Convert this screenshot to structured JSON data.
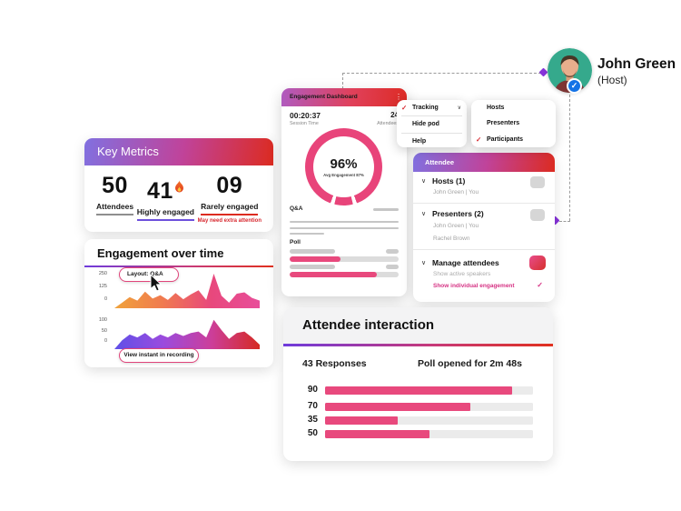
{
  "host_profile": {
    "name": "John Green",
    "role": "(Host)",
    "badge": "✓"
  },
  "pod_menu": {
    "items": [
      {
        "label": "Tracking",
        "checked": true,
        "check": "✓",
        "chevron": "∨"
      },
      {
        "label": "Hide pod",
        "checked": false
      },
      {
        "label": "Help",
        "checked": false
      }
    ]
  },
  "roles_menu": {
    "items": [
      {
        "label": "Hosts",
        "checked": false
      },
      {
        "label": "Presenters",
        "checked": false
      },
      {
        "label": "Participants",
        "checked": true,
        "check": "✓"
      }
    ]
  },
  "engagement_dashboard": {
    "title": "Engagement Dashboard",
    "kebab": "⋮",
    "session_time": "00:20:37",
    "session_time_label": "Session Time",
    "attendees_value": "24",
    "attendees_label": "Attendees",
    "donut": {
      "center_label": "96%",
      "sub_label": "Avg Engagement 87%",
      "percent": 96,
      "color": "#E8447A",
      "gap_degrees": [
        [
          160,
          166
        ],
        [
          194,
          200
        ]
      ]
    },
    "qa_label": "Q&A",
    "poll_label": "Poll",
    "poll_progress_percents": [
      47,
      80
    ]
  },
  "attendee_panel": {
    "title": "Attendee",
    "chevron": "∨",
    "sections": [
      {
        "label": "Hosts (1)",
        "members": [
          "John Green | You"
        ]
      },
      {
        "label": "Presenters (2)",
        "members": [
          "John Green | You",
          "Rachel Brown"
        ]
      },
      {
        "label": "Manage attendees",
        "options": [
          {
            "label": "Show active speakers",
            "checked": false
          },
          {
            "label": "Show individual engagement",
            "checked": true,
            "check": "✓"
          }
        ]
      }
    ]
  },
  "key_metrics": {
    "title": "Key Metrics",
    "metrics": [
      {
        "value": "50",
        "label": "Attendees"
      },
      {
        "value": "41",
        "label": "Highly engaged",
        "icon": "fire-icon"
      },
      {
        "value": "09",
        "label": "Rarely engaged",
        "note": "May need extra attention"
      }
    ]
  },
  "engagement_over_time": {
    "title": "Engagement over time",
    "tooltip_label": "Layout: Q&A",
    "button_label": "View instant in recording",
    "chart1_yticks": [
      "250",
      "125",
      "0"
    ],
    "chart2_yticks": [
      "100",
      "50",
      "0"
    ]
  },
  "attendee_interaction": {
    "title": "Attendee interaction",
    "responses_label": "43 Responses",
    "poll_status_label": "Poll opened for 2m 48s"
  },
  "colors": {
    "accent_pink": "#E8497D",
    "gradient_purple": "#8170E0",
    "gradient_red": "#DC2B20",
    "check_red": "#D7282F",
    "avatar_teal": "#35A98C",
    "badge_blue": "#1473E6",
    "diamond_purple": "#8633D9"
  },
  "chart_data": [
    {
      "type": "donut",
      "title": "Avg Engagement",
      "center_label": "96%",
      "sub_label": "Avg Engagement 87%",
      "value": 96,
      "color": "#E8447A"
    },
    {
      "type": "area",
      "title": "Engagement over time (Q&A layout)",
      "ylim": [
        0,
        250
      ],
      "yticks": [
        250,
        125,
        0
      ],
      "values": [
        0,
        40,
        80,
        55,
        120,
        70,
        95,
        60,
        110,
        65,
        100,
        130,
        60,
        250,
        90,
        40,
        105,
        115,
        75,
        55
      ],
      "gradient": [
        "#F0A33B",
        "#F07A4F",
        "#E8487C",
        "#E84E9A"
      ]
    },
    {
      "type": "area",
      "title": "Engagement over time (lower series)",
      "ylim": [
        0,
        100
      ],
      "yticks": [
        100,
        50,
        0
      ],
      "values": [
        0,
        30,
        50,
        40,
        55,
        35,
        50,
        40,
        55,
        45,
        55,
        60,
        40,
        100,
        65,
        35,
        55,
        60,
        40,
        15
      ],
      "gradient": [
        "#5F50E8",
        "#9A4BDE",
        "#CC3E9A",
        "#D52A22"
      ]
    },
    {
      "type": "bar",
      "title": "Poll responses",
      "orientation": "horizontal",
      "categories": [
        "90",
        "70",
        "35",
        "50"
      ],
      "values": [
        90,
        70,
        35,
        50
      ],
      "xlim": [
        0,
        100
      ],
      "color": "#E8497D"
    }
  ]
}
